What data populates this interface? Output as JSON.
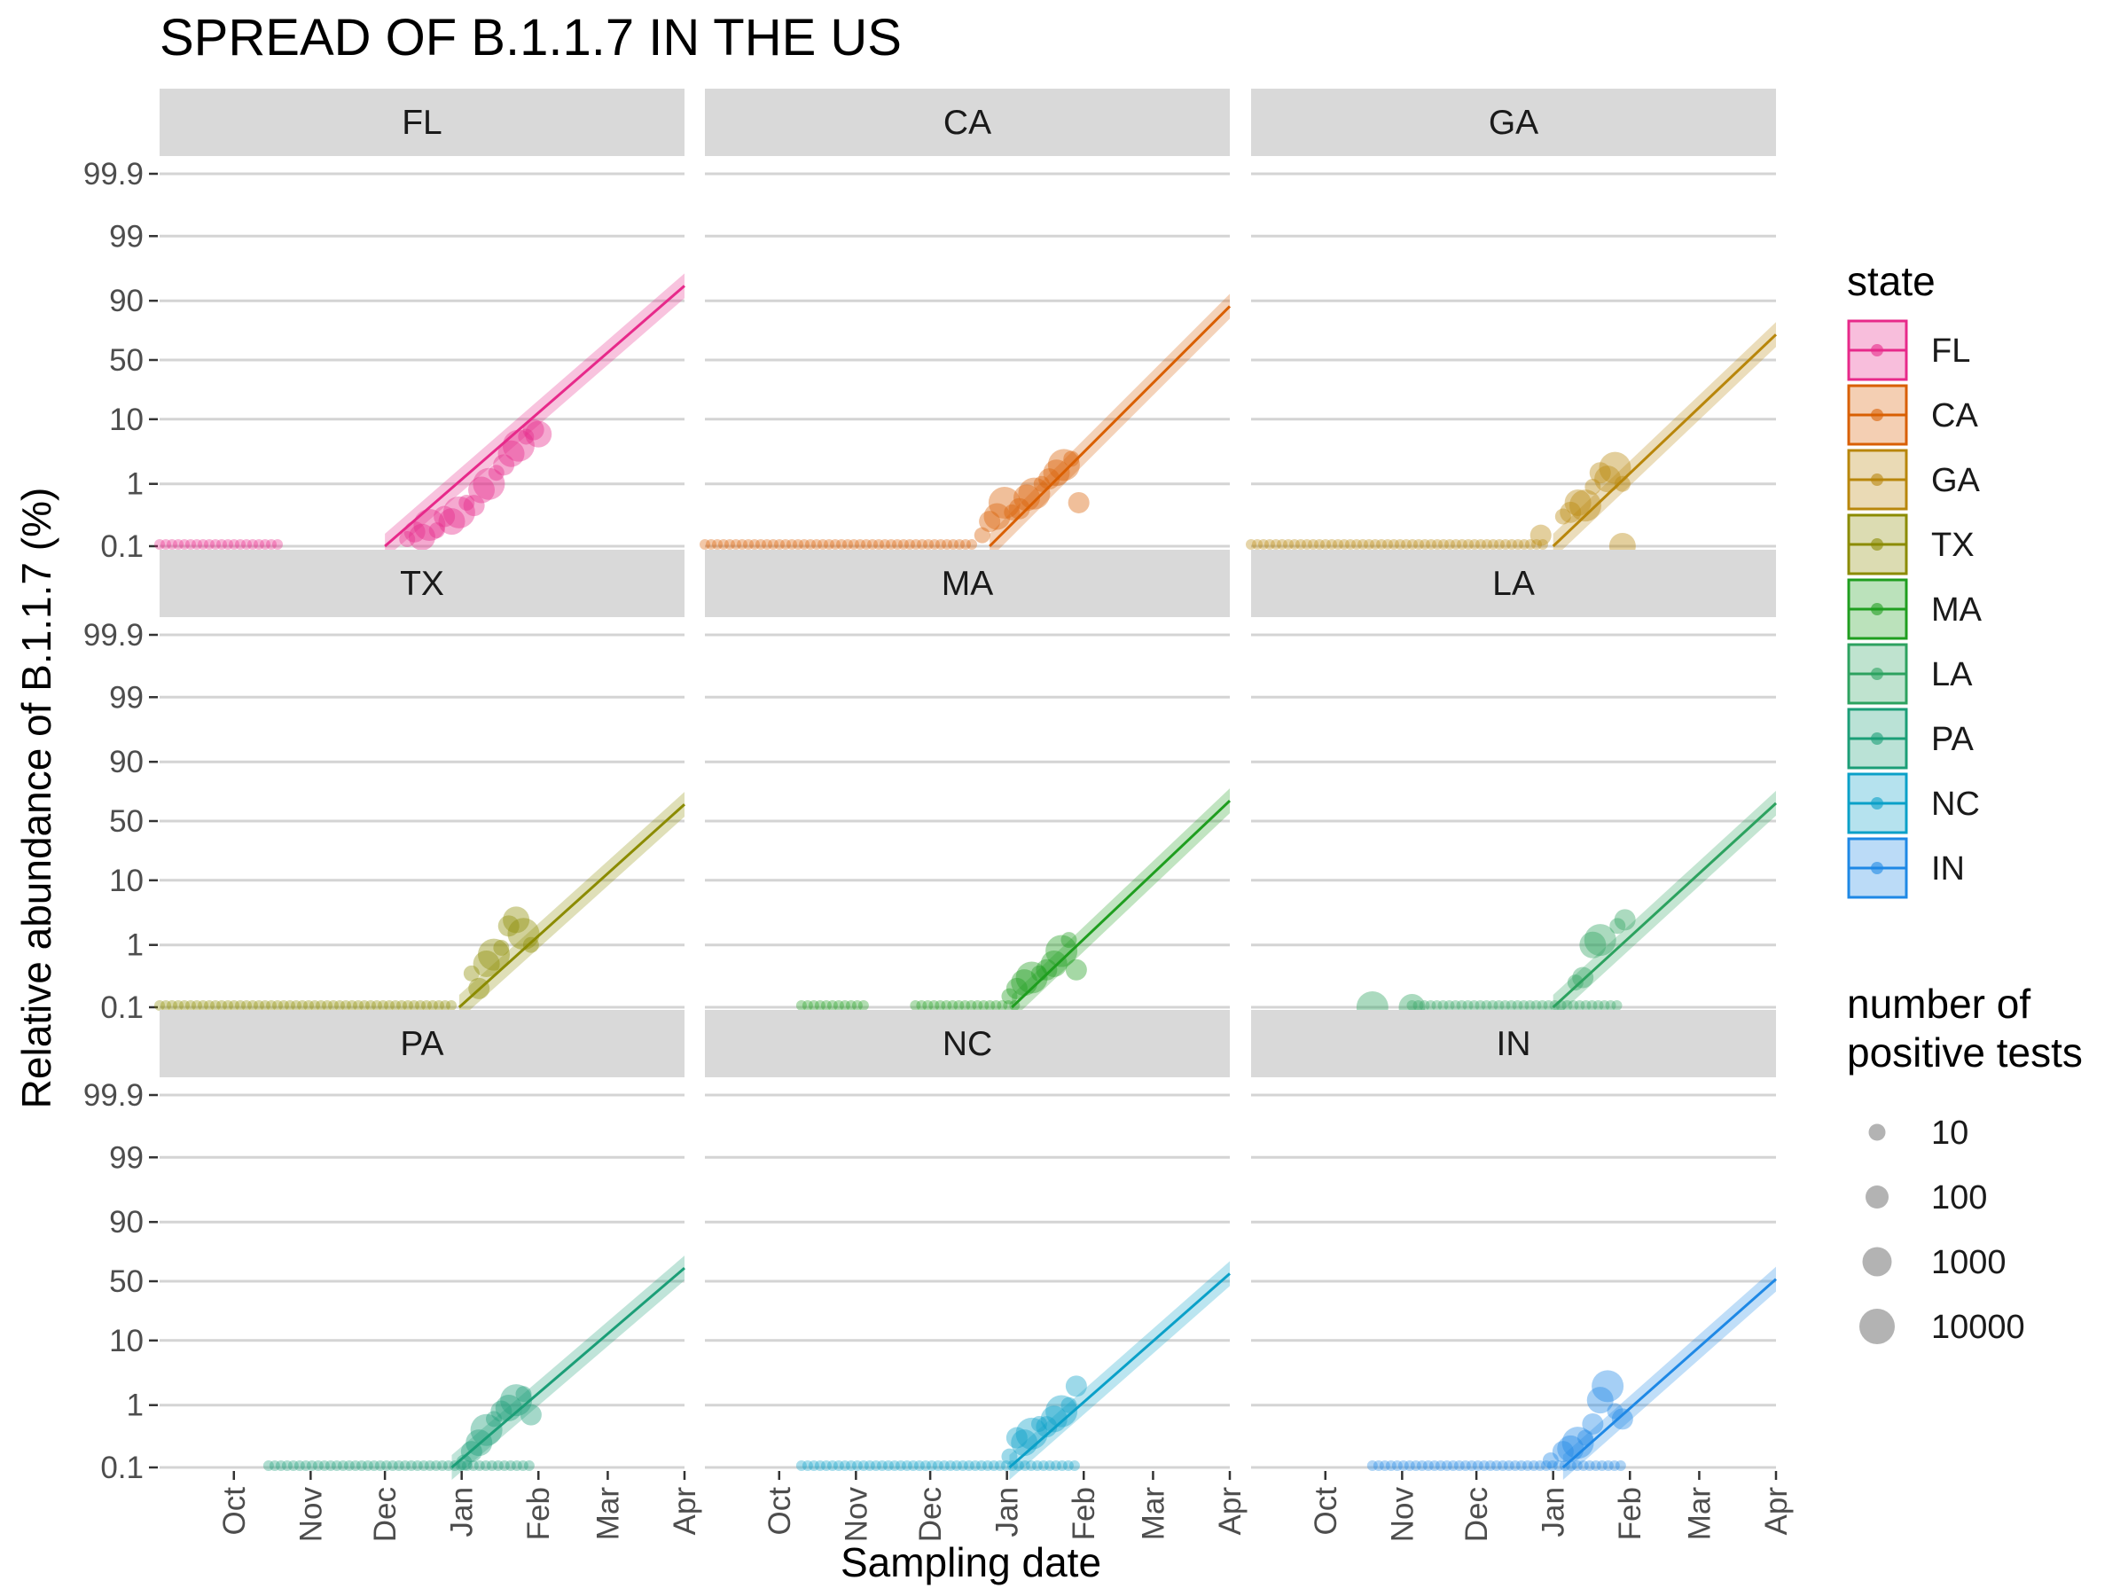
{
  "chart_data": {
    "type": "scatter",
    "title": "SPREAD OF B.1.1.7 IN THE US",
    "xlabel": "Sampling date",
    "ylabel": "Relative abundance of B.1.1.7 (%)",
    "x_scale": "date",
    "x_range": [
      "2020-09-01",
      "2021-04-01"
    ],
    "x_ticks": [
      {
        "label": "Oct",
        "date": "2020-10-01"
      },
      {
        "label": "Nov",
        "date": "2020-11-01"
      },
      {
        "label": "Dec",
        "date": "2020-12-01"
      },
      {
        "label": "Jan",
        "date": "2021-01-01"
      },
      {
        "label": "Feb",
        "date": "2021-02-01"
      },
      {
        "label": "Mar",
        "date": "2021-03-01"
      },
      {
        "label": "Apr",
        "date": "2021-04-01"
      }
    ],
    "y_scale": "logit",
    "y_ticks": [
      {
        "label": "0.1",
        "value": 0.1
      },
      {
        "label": "1",
        "value": 1
      },
      {
        "label": "10",
        "value": 10
      },
      {
        "label": "50",
        "value": 50
      },
      {
        "label": "90",
        "value": 90
      },
      {
        "label": "99",
        "value": 99
      },
      {
        "label": "99.9",
        "value": 99.9
      }
    ],
    "grid": true,
    "legend_position": "right",
    "legend_color": {
      "title": "state",
      "items": [
        {
          "name": "FL",
          "color": "#e7298a"
        },
        {
          "name": "CA",
          "color": "#d95f02"
        },
        {
          "name": "GA",
          "color": "#b8860b"
        },
        {
          "name": "TX",
          "color": "#8b8b00"
        },
        {
          "name": "MA",
          "color": "#1f9e1f"
        },
        {
          "name": "LA",
          "color": "#2ca25f"
        },
        {
          "name": "PA",
          "color": "#1b9e77"
        },
        {
          "name": "NC",
          "color": "#0aa0c8"
        },
        {
          "name": "IN",
          "color": "#1e88e5"
        }
      ]
    },
    "legend_size": {
      "title_lines": [
        "number of",
        "positive tests"
      ],
      "items": [
        {
          "label": "10",
          "value": 10
        },
        {
          "label": "100",
          "value": 100
        },
        {
          "label": "1000",
          "value": 1000
        },
        {
          "label": "10000",
          "value": 10000
        }
      ]
    },
    "panels": [
      {
        "state": "FL",
        "color": "#e7298a",
        "fit": {
          "x": [
            "2020-12-01",
            "2021-04-01"
          ],
          "y": [
            0.07,
            94
          ]
        },
        "flat": [
          [
            "2020-09-01",
            "2020-10-20"
          ]
        ],
        "points": [
          [
            "2020-12-10",
            0.13
          ],
          [
            "2020-12-13",
            0.17
          ],
          [
            "2020-12-16",
            0.14
          ],
          [
            "2020-12-19",
            0.22
          ],
          [
            "2020-12-22",
            0.18
          ],
          [
            "2020-12-25",
            0.3
          ],
          [
            "2020-12-28",
            0.25
          ],
          [
            "2020-12-31",
            0.35
          ],
          [
            "2021-01-03",
            0.5
          ],
          [
            "2021-01-06",
            0.45
          ],
          [
            "2021-01-09",
            0.8
          ],
          [
            "2021-01-12",
            1.0
          ],
          [
            "2021-01-15",
            1.5
          ],
          [
            "2021-01-18",
            2.0
          ],
          [
            "2021-01-21",
            3.0
          ],
          [
            "2021-01-24",
            4.0
          ],
          [
            "2021-01-27",
            5.5
          ],
          [
            "2021-01-30",
            7.0
          ],
          [
            "2021-02-01",
            6.0
          ]
        ]
      },
      {
        "state": "CA",
        "color": "#d95f02",
        "fit": {
          "x": [
            "2020-12-25",
            "2021-04-01"
          ],
          "y": [
            0.1,
            88
          ]
        },
        "flat": [
          [
            "2020-09-01",
            "2020-12-20"
          ]
        ],
        "points": [
          [
            "2020-12-22",
            0.15
          ],
          [
            "2020-12-25",
            0.25
          ],
          [
            "2020-12-28",
            0.3
          ],
          [
            "2020-12-31",
            0.5
          ],
          [
            "2021-01-03",
            0.35
          ],
          [
            "2021-01-06",
            0.4
          ],
          [
            "2021-01-09",
            0.6
          ],
          [
            "2021-01-12",
            0.7
          ],
          [
            "2021-01-15",
            1.0
          ],
          [
            "2021-01-18",
            1.2
          ],
          [
            "2021-01-21",
            1.5
          ],
          [
            "2021-01-24",
            2.0
          ],
          [
            "2021-01-27",
            2.5
          ],
          [
            "2021-01-30",
            0.5
          ]
        ]
      },
      {
        "state": "GA",
        "color": "#b8860b",
        "fit": {
          "x": [
            "2021-01-01",
            "2021-04-01"
          ],
          "y": [
            0.1,
            72
          ]
        },
        "flat": [
          [
            "2020-09-01",
            "2020-12-30"
          ]
        ],
        "points": [
          [
            "2021-01-05",
            0.3
          ],
          [
            "2021-01-08",
            0.35
          ],
          [
            "2021-01-11",
            0.5
          ],
          [
            "2021-01-14",
            0.45
          ],
          [
            "2021-01-17",
            0.9
          ],
          [
            "2021-01-20",
            1.5
          ],
          [
            "2021-01-23",
            1.2
          ],
          [
            "2021-01-26",
            1.8
          ],
          [
            "2021-01-29",
            1.0
          ],
          [
            "2020-12-27",
            0.15
          ],
          [
            "2021-01-29",
            0.1
          ]
        ]
      },
      {
        "state": "TX",
        "color": "#8b8b00",
        "fit": {
          "x": [
            "2020-12-31",
            "2021-04-01"
          ],
          "y": [
            0.1,
            65
          ]
        },
        "flat": [
          [
            "2020-09-01",
            "2020-12-30"
          ]
        ],
        "points": [
          [
            "2021-01-05",
            0.35
          ],
          [
            "2021-01-08",
            0.2
          ],
          [
            "2021-01-11",
            0.5
          ],
          [
            "2021-01-14",
            0.7
          ],
          [
            "2021-01-17",
            0.9
          ],
          [
            "2021-01-20",
            2.0
          ],
          [
            "2021-01-23",
            2.5
          ],
          [
            "2021-01-26",
            1.5
          ],
          [
            "2021-01-29",
            1.0
          ]
        ]
      },
      {
        "state": "MA",
        "color": "#1f9e1f",
        "fit": {
          "x": [
            "2021-01-03",
            "2021-04-01"
          ],
          "y": [
            0.1,
            68
          ]
        },
        "flat": [
          [
            "2020-10-10",
            "2020-11-05"
          ],
          [
            "2020-11-25",
            "2021-01-05"
          ]
        ],
        "points": [
          [
            "2021-01-02",
            0.15
          ],
          [
            "2021-01-05",
            0.2
          ],
          [
            "2021-01-08",
            0.25
          ],
          [
            "2021-01-11",
            0.3
          ],
          [
            "2021-01-14",
            0.35
          ],
          [
            "2021-01-17",
            0.4
          ],
          [
            "2021-01-20",
            0.5
          ],
          [
            "2021-01-23",
            0.8
          ],
          [
            "2021-01-26",
            1.2
          ],
          [
            "2021-01-29",
            0.4
          ]
        ]
      },
      {
        "state": "LA",
        "color": "#2ca25f",
        "fit": {
          "x": [
            "2021-01-01",
            "2021-04-01"
          ],
          "y": [
            0.1,
            66
          ]
        },
        "flat": [
          [
            "2020-11-05",
            "2021-01-29"
          ]
        ],
        "points": [
          [
            "2021-01-10",
            0.25
          ],
          [
            "2021-01-13",
            0.3
          ],
          [
            "2021-01-17",
            1.0
          ],
          [
            "2021-01-20",
            1.2
          ],
          [
            "2021-01-27",
            2.0
          ],
          [
            "2021-01-30",
            2.5
          ],
          [
            "2020-11-05",
            0.1
          ],
          [
            "2020-10-20",
            0.1
          ]
        ]
      },
      {
        "state": "PA",
        "color": "#1b9e77",
        "fit": {
          "x": [
            "2020-12-28",
            "2021-04-01"
          ],
          "y": [
            0.1,
            62
          ]
        },
        "flat": [
          [
            "2020-10-15",
            "2021-01-29"
          ]
        ],
        "points": [
          [
            "2021-01-02",
            0.12
          ],
          [
            "2021-01-05",
            0.18
          ],
          [
            "2021-01-08",
            0.25
          ],
          [
            "2021-01-11",
            0.4
          ],
          [
            "2021-01-14",
            0.6
          ],
          [
            "2021-01-17",
            0.8
          ],
          [
            "2021-01-20",
            0.9
          ],
          [
            "2021-01-23",
            1.2
          ],
          [
            "2021-01-26",
            1.5
          ],
          [
            "2021-01-29",
            0.7
          ]
        ]
      },
      {
        "state": "NC",
        "color": "#0aa0c8",
        "fit": {
          "x": [
            "2021-01-02",
            "2021-04-01"
          ],
          "y": [
            0.1,
            57
          ]
        },
        "flat": [
          [
            "2020-10-10",
            "2021-01-29"
          ]
        ],
        "points": [
          [
            "2021-01-02",
            0.15
          ],
          [
            "2021-01-05",
            0.3
          ],
          [
            "2021-01-08",
            0.25
          ],
          [
            "2021-01-11",
            0.35
          ],
          [
            "2021-01-14",
            0.5
          ],
          [
            "2021-01-17",
            0.45
          ],
          [
            "2021-01-20",
            0.6
          ],
          [
            "2021-01-23",
            0.8
          ],
          [
            "2021-01-26",
            1.0
          ],
          [
            "2021-01-29",
            2.0
          ]
        ]
      },
      {
        "state": "IN",
        "color": "#1e88e5",
        "fit": {
          "x": [
            "2021-01-05",
            "2021-04-01"
          ],
          "y": [
            0.1,
            52
          ]
        },
        "flat": [
          [
            "2020-10-20",
            "2021-01-29"
          ]
        ],
        "points": [
          [
            "2020-12-31",
            0.13
          ],
          [
            "2021-01-05",
            0.18
          ],
          [
            "2021-01-08",
            0.2
          ],
          [
            "2021-01-11",
            0.25
          ],
          [
            "2021-01-14",
            0.3
          ],
          [
            "2021-01-17",
            0.5
          ],
          [
            "2021-01-20",
            1.2
          ],
          [
            "2021-01-23",
            2.0
          ],
          [
            "2021-01-26",
            0.8
          ],
          [
            "2021-01-29",
            0.6
          ]
        ]
      }
    ]
  }
}
